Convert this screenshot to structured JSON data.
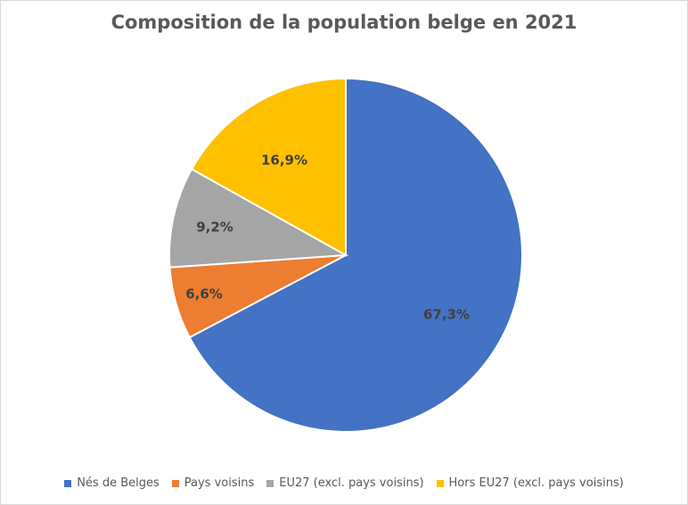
{
  "chart_data": {
    "type": "pie",
    "title": "Composition de la population belge en 2021",
    "categories": [
      "Nés de Belges",
      "Pays voisins",
      "EU27 (excl. pays voisins)",
      "Hors EU27 (excl. pays voisins)"
    ],
    "values": [
      67.3,
      6.6,
      9.2,
      16.9
    ],
    "data_labels": [
      "67,3%",
      "6,6%",
      "9,2%",
      "16,9%"
    ],
    "colors": [
      "#4472C4",
      "#ED7D31",
      "#A5A5A5",
      "#FFC000"
    ],
    "start_angle": "12 o'clock",
    "direction": "clockwise",
    "legend_position": "bottom"
  }
}
